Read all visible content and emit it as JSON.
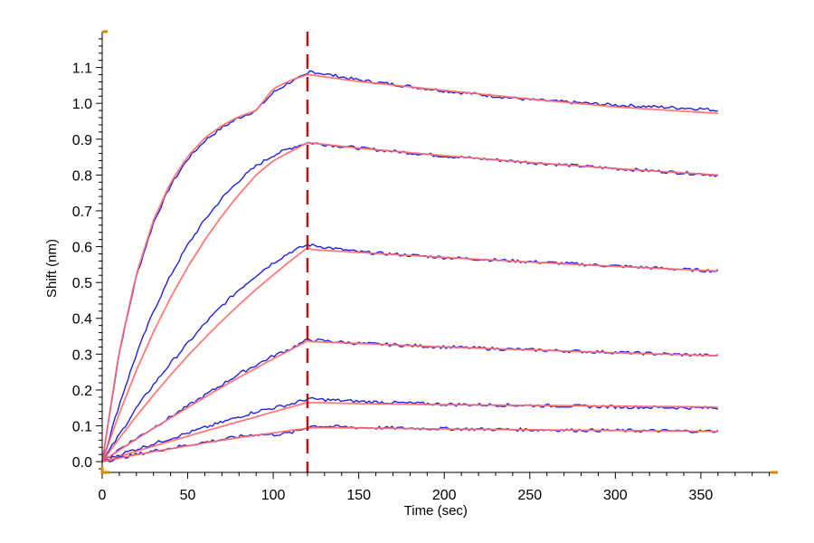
{
  "colors": {
    "raw": "#2222dd",
    "fit": "#ff6b6b",
    "phase_marker": "#b01818",
    "axis": "#000000",
    "axis_end": "#d98a00"
  },
  "chart_data": {
    "type": "line",
    "xlabel": "Time (sec)",
    "ylabel": "Shift (nm)",
    "xlim": [
      0,
      395
    ],
    "ylim": [
      -0.03,
      1.2
    ],
    "x_ticks": [
      0,
      50,
      100,
      150,
      200,
      250,
      300,
      350
    ],
    "x_tick_labels": [
      "0",
      "50",
      "100",
      "150",
      "200",
      "250",
      "300",
      "350"
    ],
    "y_ticks": [
      0.0,
      0.1,
      0.2,
      0.3,
      0.4,
      0.5,
      0.6,
      0.7,
      0.8,
      0.9,
      1.0,
      1.1
    ],
    "y_tick_labels": [
      "0.0",
      "0.1",
      "0.2",
      "0.3",
      "0.4",
      "0.5",
      "0.6",
      "0.7",
      "0.8",
      "0.9",
      "1.0",
      "1.1"
    ],
    "phase_marker_x": 120,
    "grid": false,
    "series": [
      {
        "kind": "raw",
        "x": [
          0,
          10,
          20,
          30,
          40,
          50,
          60,
          70,
          80,
          90,
          100,
          110,
          120,
          121,
          150,
          200,
          250,
          300,
          350,
          360
        ],
        "y": [
          0.0,
          0.305,
          0.518,
          0.667,
          0.771,
          0.845,
          0.896,
          0.932,
          0.96,
          0.98,
          1.03,
          1.06,
          1.08,
          1.09,
          1.065,
          1.035,
          1.01,
          0.995,
          0.985,
          0.98
        ]
      },
      {
        "kind": "fit",
        "x": [
          0,
          10,
          20,
          30,
          40,
          50,
          60,
          70,
          80,
          90,
          100,
          110,
          120,
          121,
          150,
          200,
          250,
          300,
          350,
          360
        ],
        "y": [
          0.0,
          0.309,
          0.524,
          0.674,
          0.779,
          0.852,
          0.903,
          0.938,
          0.963,
          0.98,
          1.041,
          1.064,
          1.08,
          1.08,
          1.061,
          1.036,
          1.012,
          0.99,
          0.975,
          0.972
        ]
      },
      {
        "kind": "raw",
        "x": [
          0,
          10,
          20,
          30,
          40,
          50,
          60,
          70,
          80,
          90,
          100,
          110,
          120,
          121,
          150,
          200,
          250,
          300,
          350,
          360
        ],
        "y": [
          0.0,
          0.16,
          0.3,
          0.42,
          0.52,
          0.605,
          0.675,
          0.735,
          0.785,
          0.825,
          0.855,
          0.875,
          0.89,
          0.89,
          0.875,
          0.853,
          0.835,
          0.818,
          0.803,
          0.8
        ]
      },
      {
        "kind": "fit",
        "x": [
          0,
          10,
          20,
          30,
          40,
          50,
          60,
          70,
          80,
          90,
          100,
          110,
          120,
          121,
          150,
          200,
          250,
          300,
          350,
          360
        ],
        "y": [
          0.0,
          0.135,
          0.255,
          0.362,
          0.458,
          0.543,
          0.619,
          0.686,
          0.746,
          0.8,
          0.84,
          0.865,
          0.89,
          0.89,
          0.875,
          0.854,
          0.835,
          0.818,
          0.803,
          0.8
        ]
      },
      {
        "kind": "raw",
        "x": [
          0,
          10,
          20,
          30,
          40,
          50,
          60,
          70,
          80,
          90,
          100,
          110,
          120,
          121,
          150,
          200,
          250,
          300,
          350,
          360
        ],
        "y": [
          0.0,
          0.075,
          0.15,
          0.215,
          0.275,
          0.33,
          0.385,
          0.435,
          0.48,
          0.52,
          0.555,
          0.585,
          0.605,
          0.605,
          0.585,
          0.57,
          0.558,
          0.546,
          0.534,
          0.532
        ]
      },
      {
        "kind": "fit",
        "x": [
          0,
          10,
          20,
          30,
          40,
          50,
          60,
          70,
          80,
          90,
          100,
          110,
          120,
          121,
          150,
          200,
          250,
          300,
          350,
          360
        ],
        "y": [
          0.0,
          0.065,
          0.127,
          0.186,
          0.242,
          0.295,
          0.345,
          0.393,
          0.438,
          0.481,
          0.521,
          0.56,
          0.597,
          0.592,
          0.584,
          0.57,
          0.557,
          0.545,
          0.534,
          0.532
        ]
      },
      {
        "kind": "raw",
        "x": [
          0,
          10,
          20,
          30,
          40,
          50,
          60,
          70,
          80,
          90,
          100,
          110,
          120,
          121,
          150,
          200,
          250,
          300,
          350,
          360
        ],
        "y": [
          0.0,
          0.035,
          0.065,
          0.095,
          0.125,
          0.155,
          0.185,
          0.215,
          0.245,
          0.27,
          0.295,
          0.315,
          0.34,
          0.34,
          0.33,
          0.32,
          0.312,
          0.305,
          0.297,
          0.296
        ]
      },
      {
        "kind": "fit",
        "x": [
          0,
          10,
          20,
          30,
          40,
          50,
          60,
          70,
          80,
          90,
          100,
          110,
          120,
          121,
          150,
          200,
          250,
          300,
          350,
          360
        ],
        "y": [
          0.0,
          0.032,
          0.063,
          0.093,
          0.122,
          0.151,
          0.18,
          0.208,
          0.235,
          0.261,
          0.287,
          0.312,
          0.337,
          0.335,
          0.33,
          0.32,
          0.312,
          0.304,
          0.297,
          0.296
        ]
      },
      {
        "kind": "raw",
        "x": [
          0,
          10,
          20,
          30,
          40,
          50,
          60,
          70,
          80,
          90,
          100,
          110,
          120,
          121,
          150,
          200,
          250,
          300,
          350,
          360
        ],
        "y": [
          0.0,
          0.02,
          0.035,
          0.05,
          0.065,
          0.08,
          0.095,
          0.11,
          0.125,
          0.14,
          0.15,
          0.16,
          0.175,
          0.175,
          0.168,
          0.16,
          0.157,
          0.153,
          0.15,
          0.15
        ]
      },
      {
        "kind": "fit",
        "x": [
          0,
          10,
          20,
          30,
          40,
          50,
          60,
          70,
          80,
          90,
          100,
          110,
          120,
          121,
          150,
          200,
          250,
          300,
          350,
          360
        ],
        "y": [
          0.0,
          0.014,
          0.029,
          0.043,
          0.057,
          0.071,
          0.085,
          0.098,
          0.112,
          0.125,
          0.139,
          0.152,
          0.165,
          0.165,
          0.162,
          0.159,
          0.157,
          0.155,
          0.153,
          0.152
        ]
      },
      {
        "kind": "raw",
        "x": [
          0,
          10,
          20,
          30,
          40,
          50,
          60,
          70,
          80,
          90,
          100,
          110,
          120,
          121,
          150,
          200,
          250,
          300,
          350,
          360
        ],
        "y": [
          0.0,
          0.01,
          0.02,
          0.03,
          0.038,
          0.046,
          0.054,
          0.062,
          0.07,
          0.076,
          0.075,
          0.08,
          0.095,
          0.1,
          0.095,
          0.092,
          0.089,
          0.087,
          0.085,
          0.085
        ]
      },
      {
        "kind": "fit",
        "x": [
          0,
          10,
          20,
          30,
          40,
          50,
          60,
          70,
          80,
          90,
          100,
          110,
          120,
          121,
          150,
          200,
          250,
          300,
          350,
          360
        ],
        "y": [
          0.0,
          0.01,
          0.019,
          0.028,
          0.036,
          0.044,
          0.052,
          0.06,
          0.067,
          0.074,
          0.08,
          0.087,
          0.093,
          0.095,
          0.094,
          0.091,
          0.089,
          0.087,
          0.085,
          0.084
        ]
      }
    ]
  }
}
